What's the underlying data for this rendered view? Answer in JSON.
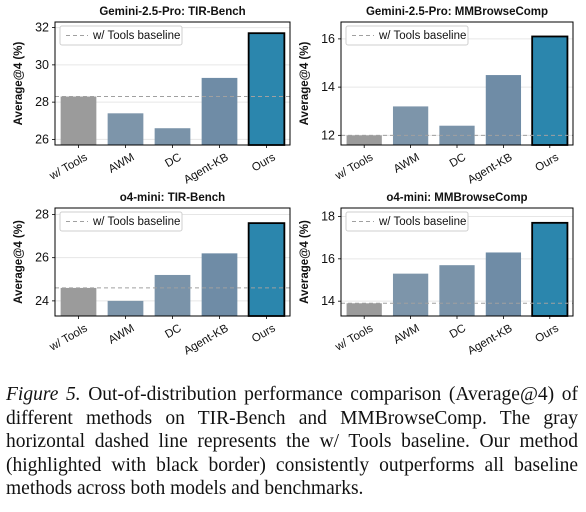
{
  "chart_data": [
    {
      "type": "bar",
      "title": "Gemini-2.5-Pro: TIR-Bench",
      "ylabel": "Average@4 (%)",
      "categories": [
        "w/ Tools",
        "AWM",
        "DC",
        "Agent-KB",
        "Ours"
      ],
      "values": [
        28.3,
        27.4,
        26.6,
        29.3,
        31.7
      ],
      "ylim": [
        25.7,
        32.3
      ],
      "yticks": [
        26,
        28,
        30,
        32
      ],
      "baseline": 28.3,
      "legend": "w/ Tools baseline",
      "legend_position": "upper-left",
      "grid": true
    },
    {
      "type": "bar",
      "title": "Gemini-2.5-Pro: MMBrowseComp",
      "ylabel": "Average@4 (%)",
      "categories": [
        "w/ Tools",
        "AWM",
        "DC",
        "Agent-KB",
        "Ours"
      ],
      "values": [
        12.0,
        13.2,
        12.4,
        14.5,
        16.1
      ],
      "ylim": [
        11.6,
        16.7
      ],
      "yticks": [
        12,
        14,
        16
      ],
      "baseline": 12.0,
      "legend": "w/ Tools baseline",
      "legend_position": "upper-left",
      "grid": true
    },
    {
      "type": "bar",
      "title": "o4-mini: TIR-Bench",
      "ylabel": "Average@4 (%)",
      "categories": [
        "w/ Tools",
        "AWM",
        "DC",
        "Agent-KB",
        "Ours"
      ],
      "values": [
        24.6,
        24.0,
        25.2,
        26.2,
        27.6
      ],
      "ylim": [
        23.3,
        28.3
      ],
      "yticks": [
        24,
        26,
        28
      ],
      "baseline": 24.6,
      "legend": "w/ Tools baseline",
      "legend_position": "upper-left",
      "grid": true
    },
    {
      "type": "bar",
      "title": "o4-mini: MMBrowseComp",
      "ylabel": "Average@4 (%)",
      "categories": [
        "w/ Tools",
        "AWM",
        "DC",
        "Agent-KB",
        "Ours"
      ],
      "values": [
        13.9,
        15.3,
        15.7,
        16.3,
        17.7
      ],
      "ylim": [
        13.3,
        18.4
      ],
      "yticks": [
        14,
        16,
        18
      ],
      "baseline": 13.9,
      "legend": "w/ Tools baseline",
      "legend_position": "upper-left",
      "grid": true
    }
  ],
  "colors": {
    "w/ Tools": "#9b9b9b",
    "AWM": "#7d95aa",
    "DC": "#7a93a9",
    "Agent-KB": "#6f8ca6",
    "Ours": "#2b86ad",
    "highlight_border": "#000000",
    "baseline_line": "#a0a0a0",
    "grid": "#e6e6e6"
  },
  "caption": {
    "label": "Figure 5.",
    "text": "Out-of-distribution performance comparison (Average@4) of different methods on TIR-Bench and MMBrowseComp. The gray horizontal dashed line represents the w/ Tools baseline. Our method (highlighted with black border) consistently outperforms all baseline methods across both models and benchmarks."
  }
}
